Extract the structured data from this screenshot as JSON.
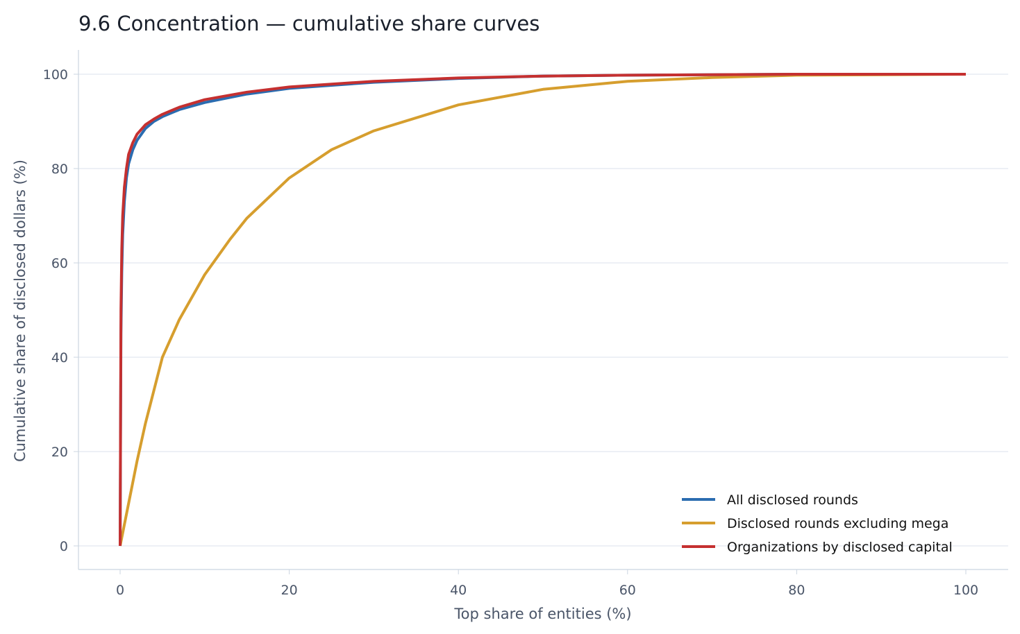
{
  "chart_data": {
    "type": "line",
    "title": "9.6 Concentration — cumulative share curves",
    "xlabel": "Top share of entities (%)",
    "ylabel": "Cumulative share of disclosed dollars (%)",
    "xlim": [
      -5,
      105
    ],
    "ylim": [
      -5,
      105
    ],
    "xticks": [
      0,
      20,
      40,
      60,
      80,
      100
    ],
    "yticks": [
      0,
      20,
      40,
      60,
      80,
      100
    ],
    "grid": "horizontal",
    "legend": "bottom-right",
    "series": [
      {
        "name": "All disclosed rounds",
        "color": "#2b6cb0",
        "x": [
          0,
          0.1,
          0.2,
          0.3,
          0.5,
          0.75,
          1,
          1.5,
          2,
          3,
          4,
          5,
          7,
          10,
          15,
          20,
          30,
          40,
          50,
          60,
          80,
          100
        ],
        "y": [
          0,
          45,
          58,
          66,
          73,
          78,
          81,
          84,
          86,
          88.5,
          90,
          91,
          92.5,
          94,
          95.8,
          97,
          98.3,
          99.1,
          99.6,
          99.8,
          100,
          100
        ]
      },
      {
        "name": "Disclosed rounds excluding mega",
        "color": "#d69e2e",
        "x": [
          0,
          1,
          2,
          3,
          4,
          5,
          7,
          10,
          13,
          15,
          20,
          25,
          30,
          40,
          50,
          60,
          70,
          80,
          100
        ],
        "y": [
          0,
          9,
          18,
          26,
          33,
          40,
          48,
          57.5,
          65,
          69.5,
          78,
          84,
          88,
          93.5,
          96.8,
          98.5,
          99.3,
          99.8,
          100
        ]
      },
      {
        "name": "Organizations by disclosed capital",
        "color": "#c53030",
        "x": [
          0,
          0.1,
          0.2,
          0.3,
          0.5,
          0.75,
          1,
          1.5,
          2,
          3,
          4,
          5,
          7,
          10,
          15,
          20,
          30,
          40,
          50,
          60,
          80,
          100
        ],
        "y": [
          0,
          50,
          63,
          70,
          76,
          80,
          83,
          85.5,
          87.3,
          89.3,
          90.5,
          91.5,
          93,
          94.6,
          96.2,
          97.3,
          98.5,
          99.2,
          99.6,
          99.8,
          100,
          100
        ]
      }
    ]
  }
}
